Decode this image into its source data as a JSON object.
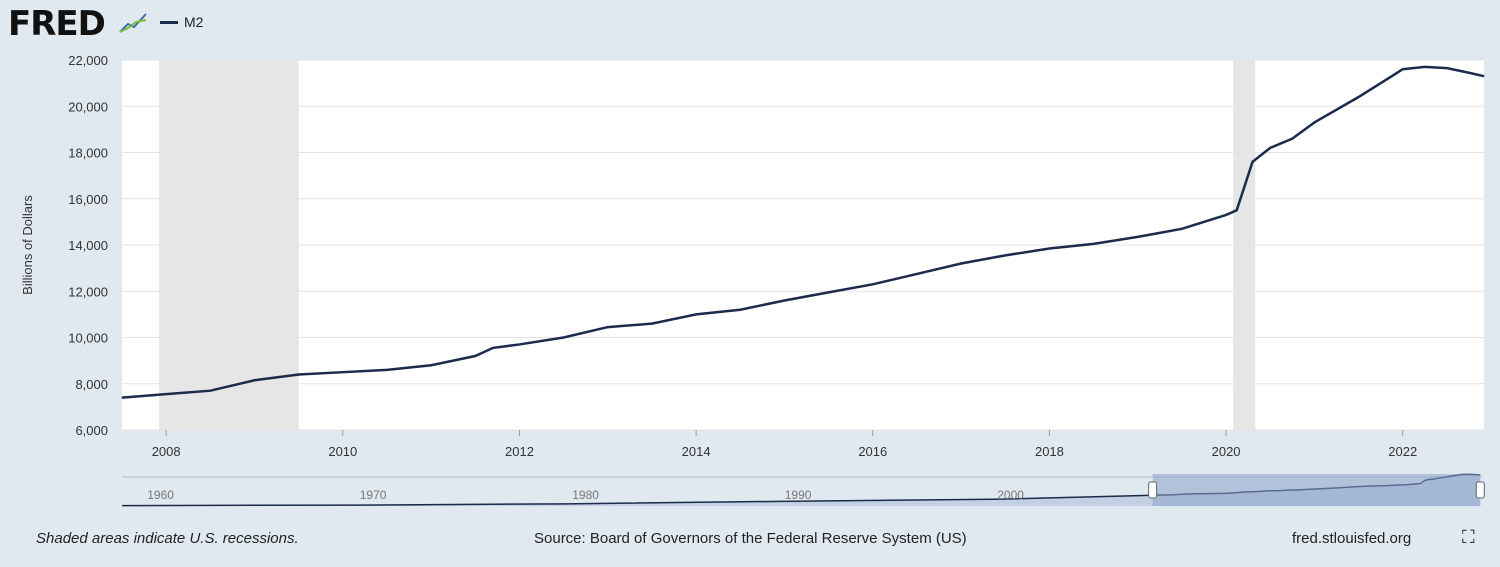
{
  "header": {
    "logo": "FRED",
    "series_legend": "M2"
  },
  "colors": {
    "line": "#1b2b4b",
    "recession": "#e6e6e6",
    "plot_bg": "#ffffff",
    "navigator_fill": "#8aa2c8"
  },
  "chart_data": {
    "type": "line",
    "ylabel": "Billions of Dollars",
    "ylim": [
      6000,
      22000
    ],
    "xlim": [
      2007.5,
      2022.92
    ],
    "yticks": [
      "6,000",
      "8,000",
      "10,000",
      "12,000",
      "14,000",
      "16,000",
      "18,000",
      "20,000",
      "22,000"
    ],
    "xticks": [
      "2008",
      "2010",
      "2012",
      "2014",
      "2016",
      "2018",
      "2020",
      "2022"
    ],
    "grid": true,
    "legend": "top-left",
    "recessions": [
      [
        2007.92,
        2009.5
      ],
      [
        2020.08,
        2020.33
      ]
    ],
    "series": [
      {
        "name": "M2",
        "x": [
          2007.5,
          2008.0,
          2008.5,
          2009.0,
          2009.5,
          2010.0,
          2010.5,
          2011.0,
          2011.5,
          2011.7,
          2012.0,
          2012.5,
          2013.0,
          2013.5,
          2014.0,
          2014.5,
          2015.0,
          2015.5,
          2016.0,
          2016.5,
          2017.0,
          2017.5,
          2018.0,
          2018.5,
          2019.0,
          2019.5,
          2020.0,
          2020.12,
          2020.3,
          2020.5,
          2020.75,
          2021.0,
          2021.5,
          2022.0,
          2022.25,
          2022.5,
          2022.75,
          2022.92
        ],
        "y": [
          7400,
          7550,
          7700,
          8150,
          8400,
          8500,
          8600,
          8800,
          9200,
          9550,
          9700,
          10000,
          10450,
          10600,
          11000,
          11200,
          11600,
          11950,
          12300,
          12750,
          13200,
          13550,
          13850,
          14050,
          14350,
          14700,
          15300,
          15500,
          17600,
          18200,
          18600,
          19300,
          20400,
          21600,
          21700,
          21650,
          21450,
          21300
        ]
      }
    ],
    "navigator": {
      "ticks": [
        "1960",
        "1970",
        "1980",
        "1990",
        "2000"
      ],
      "range": [
        1959,
        2023
      ],
      "selected": [
        2007.5,
        2022.92
      ]
    }
  },
  "footer": {
    "note": "Shaded areas indicate U.S. recessions.",
    "source": "Source: Board of Governors of the Federal Reserve System (US)",
    "site": "fred.stlouisfed.org"
  }
}
